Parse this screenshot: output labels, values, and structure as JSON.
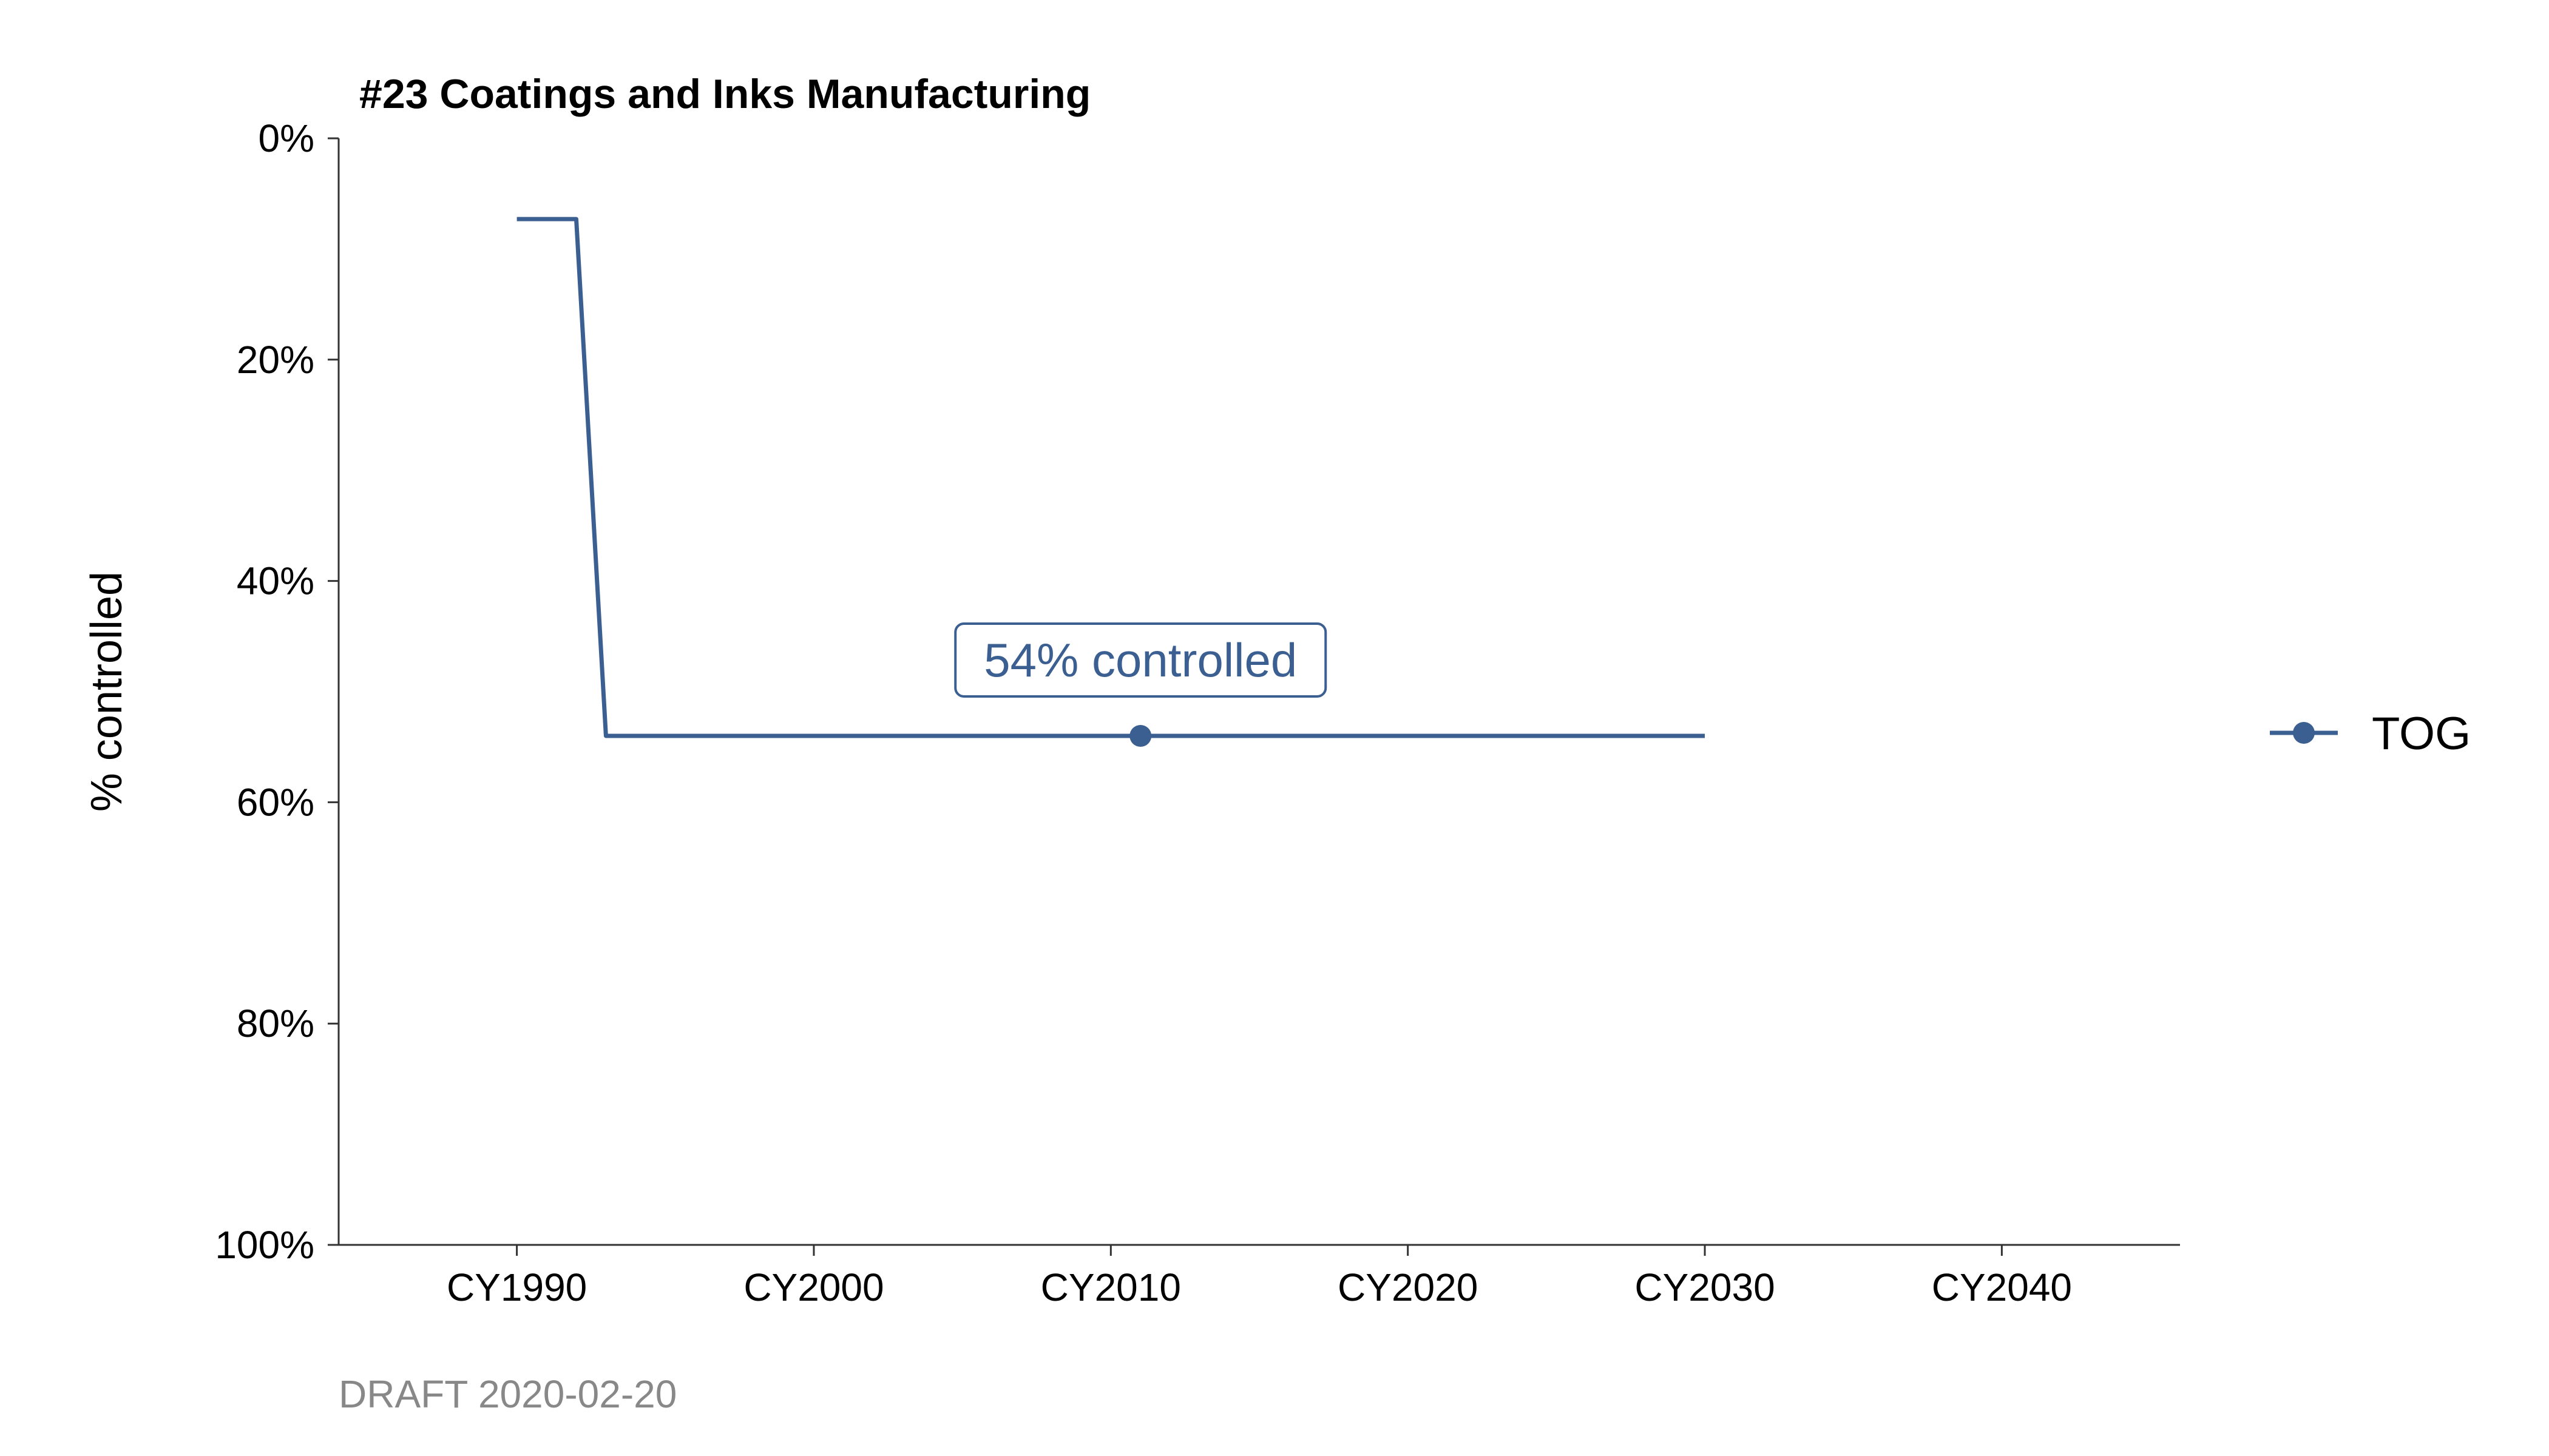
{
  "chart_data": {
    "type": "line",
    "title": "#23 Coatings and Inks Manufacturing",
    "ylabel": "% controlled",
    "xlabel": "",
    "x_ticks": [
      "CY1990",
      "CY2000",
      "CY2010",
      "CY2020",
      "CY2030",
      "CY2040"
    ],
    "x_tick_values": [
      1990,
      2000,
      2010,
      2020,
      2030,
      2040
    ],
    "xlim": [
      1984,
      2046
    ],
    "y_ticks": [
      "0%",
      "20%",
      "40%",
      "60%",
      "80%",
      "100%"
    ],
    "y_tick_values": [
      0,
      20,
      40,
      60,
      80,
      100
    ],
    "ylim": [
      0,
      100
    ],
    "y_reversed": true,
    "grid": false,
    "legend_position": "right",
    "series": [
      {
        "name": "TOG",
        "color": "#3b5f91",
        "x": [
          1990,
          1992,
          1993,
          2030
        ],
        "y": [
          7.3,
          7.3,
          54,
          54
        ],
        "marker": {
          "x": 2011,
          "y": 54
        }
      }
    ],
    "annotation": {
      "text": "54% controlled",
      "x": 2011,
      "y": 54
    },
    "caption": "DRAFT 2020-02-20"
  }
}
